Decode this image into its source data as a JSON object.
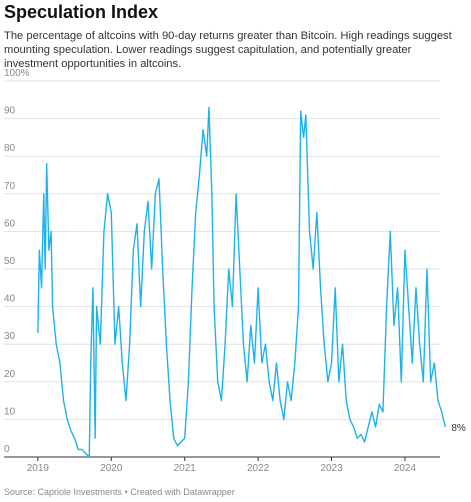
{
  "chart_data": {
    "type": "line",
    "title": "Speculation Index",
    "subtitle": "The percentage of altcoins with 90-day returns greater than Bitcoin. High readings suggest mounting speculation. Lower readings suggest capitulation, and potentially greater investment opportunities in altcoins.",
    "source": "Source: Capriole Investments • Created with Datawrapper",
    "x": [
      2019.0,
      2019.02,
      2019.05,
      2019.08,
      2019.1,
      2019.12,
      2019.15,
      2019.18,
      2019.2,
      2019.25,
      2019.3,
      2019.35,
      2019.4,
      2019.45,
      2019.5,
      2019.55,
      2019.6,
      2019.65,
      2019.7,
      2019.72,
      2019.75,
      2019.78,
      2019.8,
      2019.85,
      2019.9,
      2019.95,
      2020.0,
      2020.05,
      2020.1,
      2020.15,
      2020.2,
      2020.25,
      2020.3,
      2020.35,
      2020.4,
      2020.45,
      2020.5,
      2020.55,
      2020.6,
      2020.65,
      2020.7,
      2020.75,
      2020.8,
      2020.85,
      2020.9,
      2020.95,
      2021.0,
      2021.05,
      2021.1,
      2021.15,
      2021.2,
      2021.25,
      2021.3,
      2021.33,
      2021.37,
      2021.4,
      2021.45,
      2021.5,
      2021.55,
      2021.6,
      2021.65,
      2021.7,
      2021.75,
      2021.8,
      2021.85,
      2021.9,
      2021.95,
      2022.0,
      2022.05,
      2022.1,
      2022.15,
      2022.2,
      2022.25,
      2022.3,
      2022.35,
      2022.4,
      2022.45,
      2022.5,
      2022.55,
      2022.58,
      2022.62,
      2022.65,
      2022.7,
      2022.75,
      2022.8,
      2022.85,
      2022.9,
      2022.95,
      2023.0,
      2023.05,
      2023.1,
      2023.15,
      2023.2,
      2023.25,
      2023.3,
      2023.35,
      2023.4,
      2023.45,
      2023.5,
      2023.55,
      2023.6,
      2023.65,
      2023.7,
      2023.75,
      2023.8,
      2023.85,
      2023.9,
      2023.95,
      2024.0,
      2024.05,
      2024.1,
      2024.15,
      2024.2,
      2024.25,
      2024.3,
      2024.35,
      2024.4,
      2024.45,
      2024.5,
      2024.55
    ],
    "series": [
      {
        "color": "#1fb1ec",
        "values": [
          33,
          55,
          45,
          70,
          50,
          78,
          55,
          60,
          40,
          30,
          25,
          15,
          10,
          7,
          5,
          2,
          2,
          1,
          0,
          25,
          45,
          5,
          40,
          30,
          60,
          70,
          65,
          30,
          40,
          25,
          15,
          30,
          55,
          62,
          40,
          60,
          68,
          50,
          70,
          74,
          50,
          30,
          15,
          5,
          3,
          4,
          5,
          20,
          45,
          65,
          75,
          87,
          80,
          93,
          70,
          40,
          20,
          15,
          30,
          50,
          40,
          70,
          50,
          30,
          20,
          35,
          25,
          45,
          25,
          30,
          20,
          15,
          25,
          15,
          10,
          20,
          15,
          25,
          40,
          92,
          85,
          91,
          60,
          50,
          65,
          45,
          30,
          20,
          25,
          45,
          20,
          30,
          15,
          10,
          8,
          5,
          6,
          4,
          8,
          12,
          8,
          14,
          12,
          40,
          60,
          35,
          45,
          20,
          55,
          40,
          25,
          45,
          30,
          20,
          50,
          20,
          25,
          15,
          12,
          8
        ],
        "value_labels": [
          null,
          null,
          null,
          null,
          null,
          null,
          null,
          null,
          null,
          null,
          null,
          null,
          null,
          null,
          null,
          null,
          null,
          null,
          null,
          null,
          null,
          null,
          null,
          null,
          null,
          null,
          null,
          null,
          null,
          null,
          null,
          null,
          null,
          null,
          null,
          null,
          null,
          null,
          null,
          null,
          null,
          null,
          null,
          null,
          null,
          null,
          null,
          null,
          null,
          null,
          null,
          null,
          null,
          null,
          null,
          null,
          null,
          null,
          null,
          null,
          null,
          null,
          null,
          null,
          null,
          null,
          null,
          null,
          null,
          null,
          null,
          null,
          null,
          null,
          null,
          null,
          null,
          null,
          null,
          null,
          null,
          null,
          null,
          null,
          null,
          null,
          null,
          null,
          null,
          null,
          null,
          null,
          null,
          null,
          null,
          null,
          null,
          null,
          null,
          null,
          null,
          null,
          null,
          null,
          null,
          null,
          null,
          null,
          null,
          null,
          null,
          null,
          null,
          null,
          null,
          null,
          null,
          null,
          null,
          "8%"
        ]
      }
    ],
    "xlim": [
      2018.92,
      2024.6
    ],
    "xticks": [
      2019,
      2020,
      2021,
      2022,
      2023,
      2024
    ],
    "ylim": [
      0,
      100
    ],
    "yticks": [
      0,
      10,
      20,
      30,
      40,
      50,
      60,
      70,
      80,
      90,
      {
        "value": 100,
        "label": "100%"
      }
    ],
    "grid": true
  }
}
